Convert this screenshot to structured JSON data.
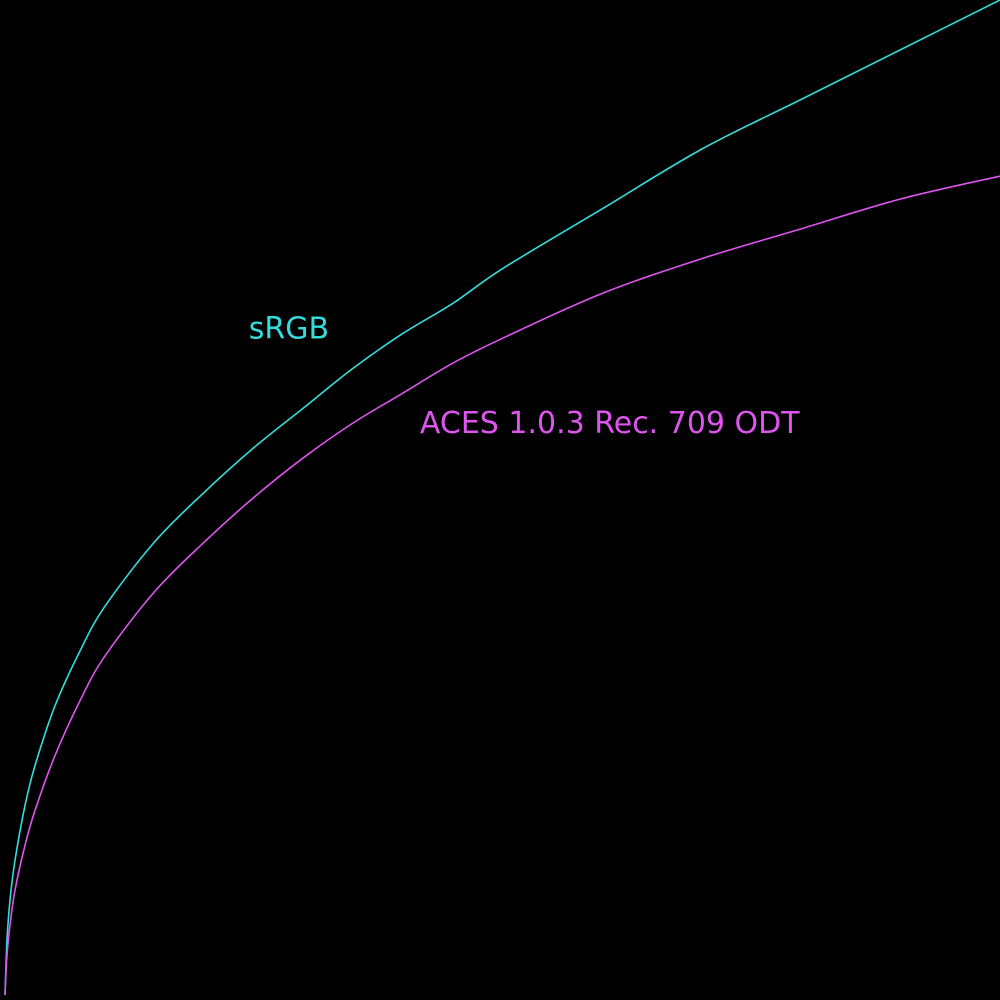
{
  "chart_data": {
    "type": "line",
    "background": "#000000",
    "xlim": [
      0,
      1
    ],
    "ylim": [
      0,
      1
    ],
    "grid": false,
    "series": [
      {
        "name": "sRGB",
        "color": "#33dddd",
        "x": [
          0,
          0.002,
          0.005,
          0.01,
          0.02,
          0.03,
          0.05,
          0.075,
          0.1,
          0.15,
          0.2,
          0.25,
          0.3,
          0.35,
          0.4,
          0.45,
          0.5,
          0.6,
          0.7,
          0.8,
          0.9,
          1.0
        ],
        "y": [
          0,
          0.055,
          0.095,
          0.135,
          0.19,
          0.23,
          0.29,
          0.345,
          0.39,
          0.455,
          0.505,
          0.55,
          0.59,
          0.63,
          0.665,
          0.695,
          0.73,
          0.79,
          0.85,
          0.9,
          0.95,
          1.0
        ]
      },
      {
        "name": "ACES 1.0.3 Rec. 709 ODT",
        "color": "#dd55ee",
        "x": [
          0,
          0.002,
          0.005,
          0.01,
          0.02,
          0.03,
          0.05,
          0.075,
          0.1,
          0.15,
          0.2,
          0.25,
          0.3,
          0.35,
          0.4,
          0.45,
          0.5,
          0.6,
          0.7,
          0.8,
          0.9,
          1.0
        ],
        "y": [
          0,
          0.04,
          0.07,
          0.105,
          0.15,
          0.185,
          0.24,
          0.295,
          0.34,
          0.405,
          0.455,
          0.5,
          0.54,
          0.575,
          0.605,
          0.635,
          0.66,
          0.705,
          0.74,
          0.77,
          0.8,
          0.823
        ]
      }
    ],
    "annotations": [
      {
        "text": "sRGB",
        "series": 0,
        "x": 0.245,
        "y": 0.66,
        "color": "#33dddd"
      },
      {
        "text": "ACES 1.0.3 Rec. 709 ODT",
        "series": 1,
        "x": 0.417,
        "y": 0.565,
        "color": "#dd55ee"
      }
    ]
  }
}
